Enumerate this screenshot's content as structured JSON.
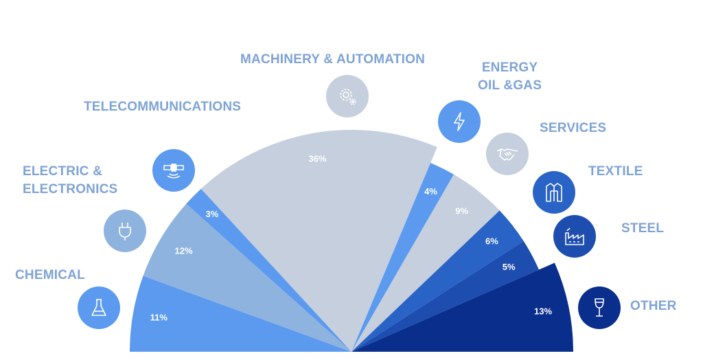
{
  "chart_data": {
    "type": "pie",
    "layout": "half-donut",
    "slices": [
      {
        "label": "CHEMICAL",
        "value": 11,
        "value_label": "11%",
        "color": "#5c9af0",
        "icon": "flask-icon"
      },
      {
        "label": "ELECTRIC & ELECTRONICS",
        "label_lines": [
          "ELECTRIC &",
          "ELECTRONICS"
        ],
        "value": 12,
        "value_label": "12%",
        "color": "#8fb3df",
        "icon": "plug-icon"
      },
      {
        "label": "TELECOMMUNICATIONS",
        "value": 3,
        "value_label": "3%",
        "color": "#5c9af0",
        "icon": "satellite-icon"
      },
      {
        "label": "MACHINERY & AUTOMATION",
        "value": 36,
        "value_label": "36%",
        "color": "#c5cfdd",
        "icon": "gear-icon"
      },
      {
        "label": "ENERGY OIL &GAS",
        "label_lines": [
          "ENERGY",
          "OIL &GAS"
        ],
        "value": 4,
        "value_label": "4%",
        "color": "#5c9af0",
        "icon": "lightning-icon"
      },
      {
        "label": "SERVICES",
        "value": 9,
        "value_label": "9%",
        "color": "#c5cfdd",
        "icon": "handshake-icon"
      },
      {
        "label": "TEXTILE",
        "value": 6,
        "value_label": "6%",
        "color": "#2a63c6",
        "icon": "shirt-icon"
      },
      {
        "label": "STEEL",
        "value": 5,
        "value_label": "5%",
        "color": "#1e4db0",
        "icon": "factory-icon"
      },
      {
        "label": "OTHER",
        "value": 13,
        "value_label": "13%",
        "color": "#0a2e8c",
        "icon": "wine-glass-icon"
      }
    ]
  },
  "icon_colors": {
    "flask-icon": "#5c9af0",
    "plug-icon": "#8fb3df",
    "satellite-icon": "#5c9af0",
    "gear-icon": "#c5cfdd",
    "lightning-icon": "#5c9af0",
    "handshake-icon": "#c5cfdd",
    "shirt-icon": "#2a63c6",
    "factory-icon": "#1e4db0",
    "wine-glass-icon": "#0a2e8c"
  },
  "label_color": "#7ea3d6"
}
